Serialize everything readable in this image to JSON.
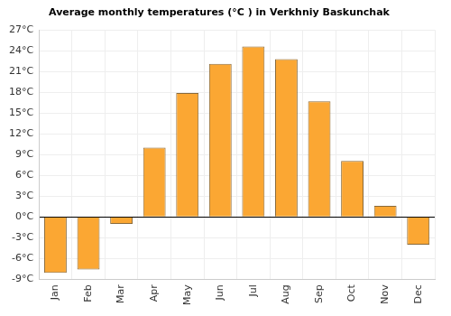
{
  "chart_data": {
    "type": "bar",
    "title": "Average monthly temperatures (°C ) in Verkhniy Baskunchak",
    "categories": [
      "Jan",
      "Feb",
      "Mar",
      "Apr",
      "May",
      "Jun",
      "Jul",
      "Aug",
      "Sep",
      "Oct",
      "Nov",
      "Dec"
    ],
    "values": [
      -8.1,
      -7.6,
      -1.0,
      10.0,
      17.9,
      22.1,
      24.6,
      22.8,
      16.7,
      8.1,
      1.6,
      -4.0
    ],
    "color": "#fba733",
    "ylim": [
      -9,
      27
    ],
    "yticks": [
      {
        "value": -9,
        "label": "-9°C"
      },
      {
        "value": -6,
        "label": "-6°C"
      },
      {
        "value": -3,
        "label": "-3°C"
      },
      {
        "value": 0,
        "label": "0°C"
      },
      {
        "value": 3,
        "label": "3°C"
      },
      {
        "value": 6,
        "label": "6°C"
      },
      {
        "value": 9,
        "label": "9°C"
      },
      {
        "value": 12,
        "label": "12°C"
      },
      {
        "value": 15,
        "label": "15°C"
      },
      {
        "value": 18,
        "label": "18°C"
      },
      {
        "value": 21,
        "label": "21°C"
      },
      {
        "value": 24,
        "label": "24°C"
      },
      {
        "value": 27,
        "label": "27°C"
      }
    ],
    "grid": true
  }
}
